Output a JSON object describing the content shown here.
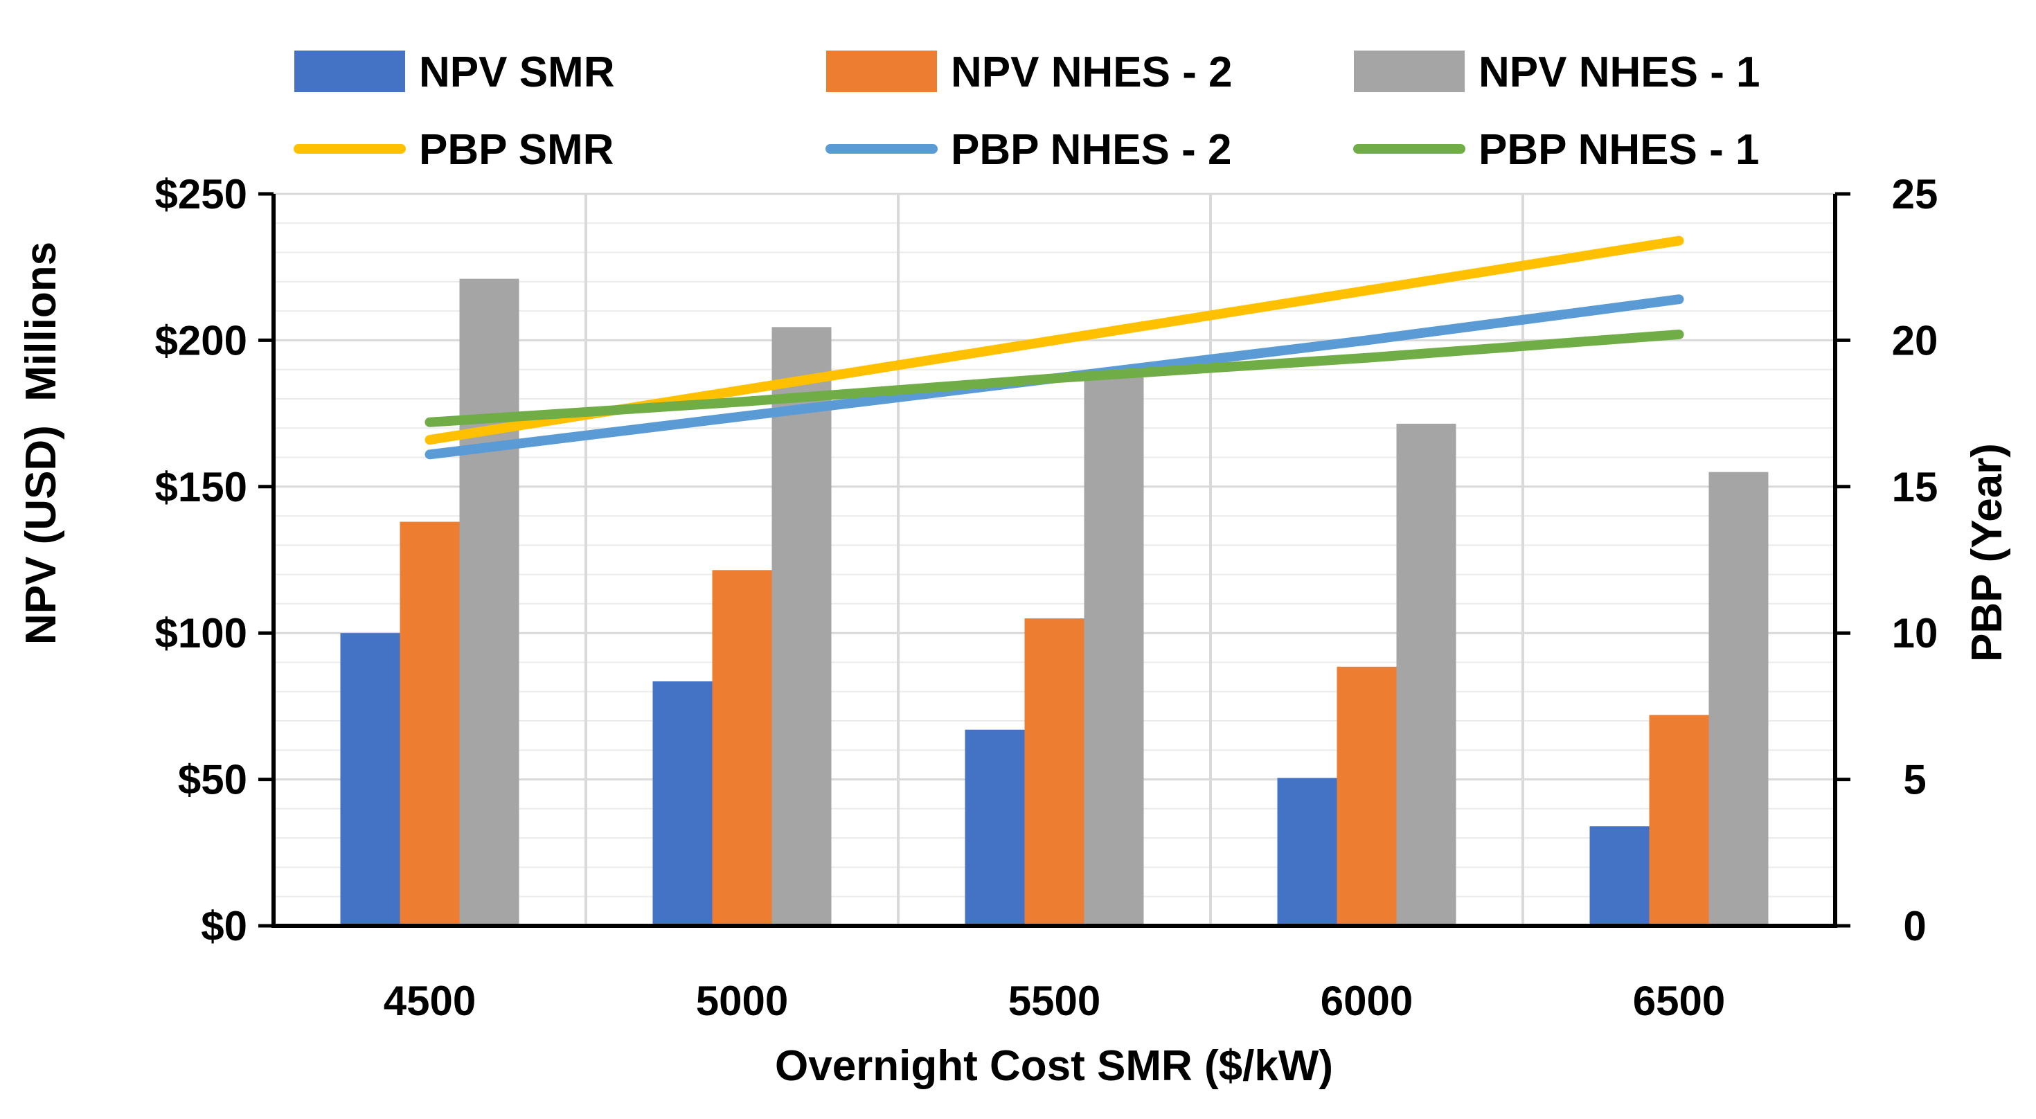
{
  "chart_data": {
    "type": "bar+line (dual axis)",
    "categories": [
      "4500",
      "5000",
      "5500",
      "6000",
      "6500"
    ],
    "xlabel": "Overnight Cost SMR ($/kW)",
    "ylabel_left": "NPV (USD)  Millions",
    "ylabel_right": "PBP (Year)",
    "ylim_left": [
      0,
      250
    ],
    "ylim_right": [
      0,
      25
    ],
    "left_ticks": [
      "$0",
      "$50",
      "$100",
      "$150",
      "$200",
      "$250"
    ],
    "left_tick_values": [
      0,
      50,
      100,
      150,
      200,
      250
    ],
    "right_ticks": [
      "0",
      "5",
      "10",
      "15",
      "20",
      "25"
    ],
    "right_tick_values": [
      0,
      5,
      10,
      15,
      20,
      25
    ],
    "grid": true,
    "legend_position": "top",
    "bar_series": [
      {
        "name": "NPV SMR",
        "color": "#4472C4",
        "values": [
          100,
          83.5,
          67,
          50.5,
          34
        ]
      },
      {
        "name": "NPV NHES - 2",
        "color": "#ED7D31",
        "values": [
          138,
          121.5,
          105,
          88.5,
          72
        ]
      },
      {
        "name": "NPV NHES - 1",
        "color": "#A5A5A5",
        "values": [
          221,
          204.5,
          188,
          171.5,
          155
        ]
      }
    ],
    "line_series": [
      {
        "name": "PBP SMR",
        "color": "#FFC000",
        "values": [
          16.6,
          18.3,
          20.0,
          21.7,
          23.4
        ]
      },
      {
        "name": "PBP NHES - 2",
        "color": "#5B9BD5",
        "values": [
          16.1,
          17.4,
          18.7,
          20.0,
          21.4
        ]
      },
      {
        "name": "PBP NHES - 1",
        "color": "#70AD47",
        "values": [
          17.2,
          17.9,
          18.7,
          19.4,
          20.2
        ]
      }
    ]
  }
}
